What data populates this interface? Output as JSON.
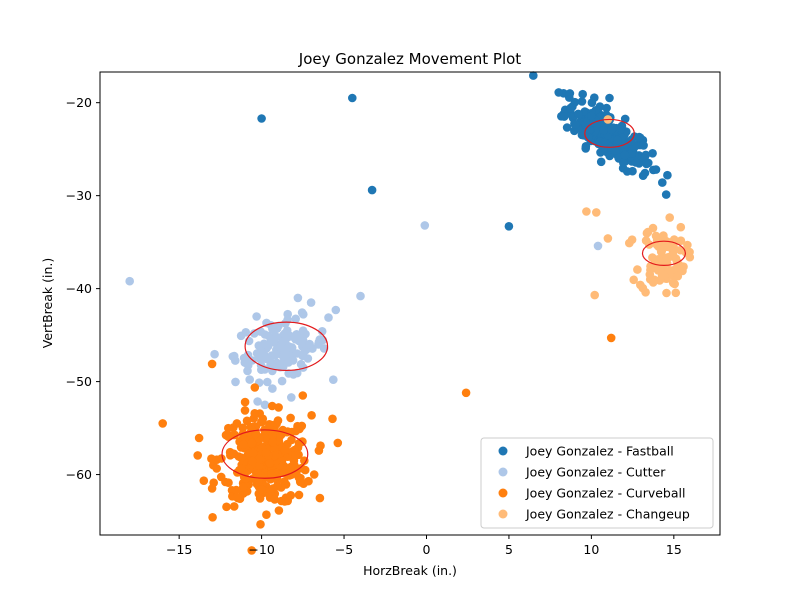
{
  "chart_data": {
    "type": "scatter",
    "title": "Joey Gonzalez Movement Plot",
    "xlabel": "HorzBreak (in.)",
    "ylabel": "VertBreak (in.)",
    "xlim": [
      -19.8,
      17.8
    ],
    "ylim": [
      -66.5,
      -16.7
    ],
    "xticks": [
      -15,
      -10,
      -5,
      0,
      5,
      10,
      15
    ],
    "yticks": [
      -60,
      -50,
      -40,
      -30,
      -20
    ],
    "tick_labels_x": [
      "−15",
      "−10",
      "−5",
      "0",
      "5",
      "10",
      "15"
    ],
    "tick_labels_y": [
      "−60",
      "−50",
      "−40",
      "−30",
      "−20"
    ],
    "grid": false,
    "legend_position": "lower-right",
    "series": [
      {
        "name": "Joey Gonzalez - Fastball",
        "color": "#1f77b4",
        "cluster": {
          "cx": 11.0,
          "cy": -23.5,
          "sx": 1.3,
          "sy": 1.9,
          "n": 230,
          "rho": -0.75
        },
        "outliers": [
          [
            -10.0,
            -21.7
          ],
          [
            -4.5,
            -19.5
          ],
          [
            -3.3,
            -29.4
          ],
          [
            5.0,
            -33.3
          ],
          [
            14.3,
            -28.6
          ],
          [
            8.7,
            -19.0
          ],
          [
            11.1,
            -19.5
          ]
        ],
        "ellipse": {
          "cx": 11.1,
          "cy": -23.3,
          "rx": 1.5,
          "ry": 1.5
        }
      },
      {
        "name": "Joey Gonzalez - Cutter",
        "color": "#aec7e8",
        "cluster": {
          "cx": -8.8,
          "cy": -46.5,
          "sx": 1.4,
          "sy": 1.6,
          "n": 130,
          "rho": 0.2
        },
        "outliers": [
          [
            -18.0,
            -39.2
          ],
          [
            -0.1,
            -33.2
          ],
          [
            10.4,
            -35.4
          ],
          [
            -4.0,
            -40.8
          ],
          [
            -5.5,
            -42.3
          ],
          [
            -7.8,
            -41.0
          ],
          [
            -7.0,
            -41.5
          ],
          [
            -10.3,
            -43.0
          ],
          [
            -9.8,
            -52.5
          ],
          [
            -8.2,
            -51.7
          ]
        ],
        "ellipse": {
          "cx": -8.5,
          "cy": -46.2,
          "rx": 2.5,
          "ry": 2.6
        }
      },
      {
        "name": "Joey Gonzalez - Curveball",
        "color": "#ff7f0e",
        "cluster": {
          "cx": -9.8,
          "cy": -58.5,
          "sx": 1.4,
          "sy": 2.4,
          "n": 330,
          "rho": 0.0
        },
        "outliers": [
          [
            -16.0,
            -54.5
          ],
          [
            -13.0,
            -48.1
          ],
          [
            -13.0,
            -61.5
          ],
          [
            2.4,
            -51.2
          ],
          [
            11.2,
            -45.3
          ],
          [
            -5.7,
            -54.0
          ],
          [
            -7.5,
            -51.5
          ],
          [
            -11.5,
            -54.5
          ],
          [
            -11.0,
            -52.2
          ]
        ],
        "ellipse": {
          "cx": -9.8,
          "cy": -57.8,
          "rx": 2.6,
          "ry": 2.6
        }
      },
      {
        "name": "Joey Gonzalez - Changeup",
        "color": "#ffbb78",
        "cluster": {
          "cx": 14.3,
          "cy": -36.8,
          "sx": 0.7,
          "sy": 1.9,
          "n": 90,
          "rho": 0.0
        },
        "outliers": [
          [
            9.7,
            -31.7
          ],
          [
            10.3,
            -31.8
          ],
          [
            11.0,
            -34.6
          ],
          [
            12.3,
            -35.1
          ],
          [
            10.2,
            -40.7
          ],
          [
            11.0,
            -21.8
          ],
          [
            15.8,
            -36.1
          ]
        ],
        "ellipse": {
          "cx": 14.4,
          "cy": -36.2,
          "rx": 1.3,
          "ry": 1.3
        }
      }
    ]
  }
}
